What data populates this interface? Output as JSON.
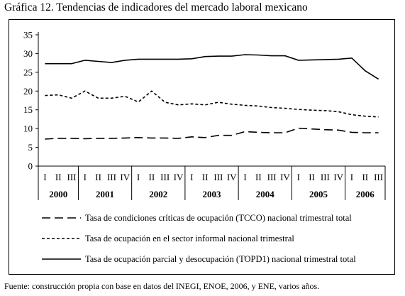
{
  "title": "Gráfica 12. Tendencias de indicadores del mercado laboral mexicano",
  "source": "Fuente: construcción propia con base en datos del INEGI, ENOE, 2006, y ENE, varios años.",
  "chart_data": {
    "type": "line",
    "title": "Gráfica 12. Tendencias de indicadores del mercado laboral mexicano",
    "xlabel": "",
    "ylabel": "",
    "ylim": [
      0,
      35
    ],
    "yticks": [
      0,
      5,
      10,
      15,
      20,
      25,
      30,
      35
    ],
    "grid": false,
    "legend_position": "bottom",
    "years": [
      {
        "label": "2000",
        "quarters": [
          "I",
          "II",
          "III"
        ]
      },
      {
        "label": "2001",
        "quarters": [
          "I",
          "II",
          "III",
          "IV"
        ]
      },
      {
        "label": "2002",
        "quarters": [
          "I",
          "II",
          "III",
          "IV"
        ]
      },
      {
        "label": "2003",
        "quarters": [
          "I",
          "II",
          "III",
          "IV"
        ]
      },
      {
        "label": "2004",
        "quarters": [
          "I",
          "II",
          "III",
          "IV"
        ]
      },
      {
        "label": "2005",
        "quarters": [
          "I",
          "II",
          "III",
          "IV"
        ]
      },
      {
        "label": "2006",
        "quarters": [
          "I",
          "II",
          "III"
        ]
      }
    ],
    "series": [
      {
        "name": "Tasa de condiciones críticas de ocupación (TCCO) nacional trimestral total",
        "dash": "long-dash",
        "values": [
          7.2,
          7.4,
          7.4,
          7.3,
          7.4,
          7.4,
          7.5,
          7.6,
          7.5,
          7.5,
          7.4,
          7.8,
          7.6,
          8.2,
          8.2,
          9.2,
          9.0,
          8.9,
          8.9,
          10.1,
          9.9,
          9.7,
          9.6,
          9.0,
          8.9,
          8.9
        ]
      },
      {
        "name": "Tasa de ocupación en el sector informal nacional trimestral",
        "dash": "short-dash",
        "values": [
          18.8,
          19.0,
          18.1,
          20.0,
          18.1,
          18.1,
          18.6,
          17.1,
          20.0,
          17.0,
          16.3,
          16.6,
          16.3,
          17.0,
          16.5,
          16.2,
          16.0,
          15.6,
          15.4,
          15.1,
          14.9,
          14.8,
          14.5,
          13.7,
          13.3,
          13.1
        ]
      },
      {
        "name": "Tasa de ocupación parcial y desocupación (TOPD1) nacional trimestral total",
        "dash": "solid",
        "values": [
          27.3,
          27.3,
          27.3,
          28.2,
          27.9,
          27.6,
          28.2,
          28.5,
          28.5,
          28.5,
          28.5,
          28.6,
          29.2,
          29.3,
          29.3,
          29.7,
          29.6,
          29.4,
          29.4,
          28.2,
          28.3,
          28.4,
          28.5,
          28.8,
          25.4,
          23.2
        ]
      }
    ]
  }
}
